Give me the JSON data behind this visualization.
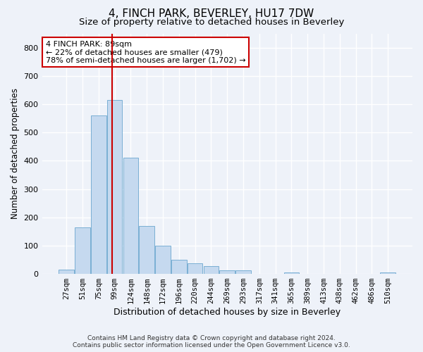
{
  "title": "4, FINCH PARK, BEVERLEY, HU17 7DW",
  "subtitle": "Size of property relative to detached houses in Beverley",
  "xlabel": "Distribution of detached houses by size in Beverley",
  "ylabel": "Number of detached properties",
  "bar_labels": [
    "27sqm",
    "51sqm",
    "75sqm",
    "99sqm",
    "124sqm",
    "148sqm",
    "172sqm",
    "196sqm",
    "220sqm",
    "244sqm",
    "269sqm",
    "293sqm",
    "317sqm",
    "341sqm",
    "365sqm",
    "389sqm",
    "413sqm",
    "438sqm",
    "462sqm",
    "486sqm",
    "510sqm"
  ],
  "bar_values": [
    15,
    165,
    560,
    615,
    410,
    170,
    100,
    50,
    37,
    28,
    12,
    12,
    0,
    0,
    5,
    0,
    0,
    0,
    0,
    0,
    5
  ],
  "bar_color": "#c5d9ef",
  "bar_edge_color": "#7aafd4",
  "red_line_x": 2.82,
  "annotation_line1": "4 FINCH PARK: 89sqm",
  "annotation_line2": "← 22% of detached houses are smaller (479)",
  "annotation_line3": "78% of semi-detached houses are larger (1,702) →",
  "annotation_box_color": "#ffffff",
  "annotation_box_edgecolor": "#cc0000",
  "ylim": [
    0,
    850
  ],
  "yticks": [
    0,
    100,
    200,
    300,
    400,
    500,
    600,
    700,
    800
  ],
  "footer_line1": "Contains HM Land Registry data © Crown copyright and database right 2024.",
  "footer_line2": "Contains public sector information licensed under the Open Government Licence v3.0.",
  "bg_color": "#eef2f9",
  "grid_color": "#ffffff",
  "title_fontsize": 11,
  "subtitle_fontsize": 9.5,
  "tick_fontsize": 7.5,
  "ylabel_fontsize": 8.5,
  "xlabel_fontsize": 9,
  "annot_fontsize": 8,
  "footer_fontsize": 6.5
}
